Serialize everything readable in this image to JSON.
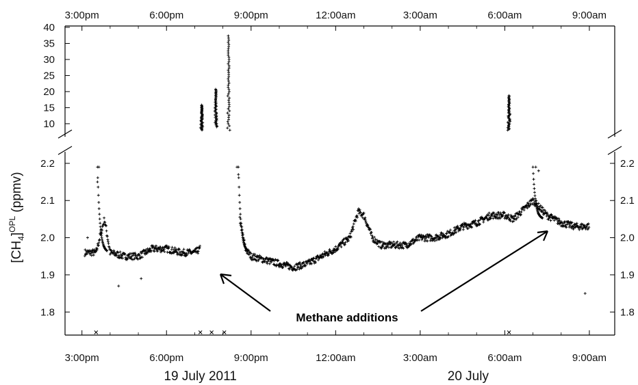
{
  "chart_data": {
    "type": "scatter",
    "title": "",
    "ylabel_main": "[CH",
    "ylabel_sub": "4",
    "ylabel_sup": "OPL",
    "ylabel_unit": " (ppmv)",
    "x_ticks": [
      "3:00pm",
      "6:00pm",
      "9:00pm",
      "12:00am",
      "3:00am",
      "6:00am",
      "9:00am"
    ],
    "x_tick_hours": [
      15,
      18,
      21,
      24,
      27,
      30,
      33
    ],
    "xlim": [
      14.4,
      33.9
    ],
    "date_labels": [
      {
        "text": "19 July 2011",
        "at_hour": 19.2
      },
      {
        "text": "20 July",
        "at_hour": 28.7
      }
    ],
    "upper_panel": {
      "ylim": [
        7,
        40
      ],
      "ticks": [
        "40",
        "35",
        "30",
        "25",
        "20",
        "15",
        "10"
      ],
      "tick_values": [
        40,
        35,
        30,
        25,
        20,
        15,
        10
      ]
    },
    "lower_panel": {
      "ylim": [
        1.76,
        2.22
      ],
      "ticks": [
        "2.2",
        "2.1",
        "2.0",
        "1.9",
        "1.8"
      ],
      "tick_values": [
        2.2,
        2.1,
        2.0,
        1.9,
        1.8
      ]
    },
    "annotation": "Methane additions",
    "addition_markers_hours": [
      15.5,
      19.2,
      19.6,
      20.05,
      30.15
    ],
    "baseline_series": [
      [
        15.1,
        1.96
      ],
      [
        15.5,
        1.96
      ],
      [
        15.8,
        2.05
      ],
      [
        16.0,
        1.96
      ],
      [
        16.5,
        1.95
      ],
      [
        17.0,
        1.95
      ],
      [
        17.5,
        1.97
      ],
      [
        18.0,
        1.97
      ],
      [
        18.5,
        1.96
      ],
      [
        19.0,
        1.96
      ],
      [
        19.2,
        1.97
      ],
      [
        20.6,
        2.05
      ],
      [
        20.8,
        1.97
      ],
      [
        21.0,
        1.95
      ],
      [
        21.5,
        1.94
      ],
      [
        22.0,
        1.93
      ],
      [
        22.5,
        1.92
      ],
      [
        23.0,
        1.93
      ],
      [
        23.5,
        1.95
      ],
      [
        24.0,
        1.97
      ],
      [
        24.5,
        2.0
      ],
      [
        24.8,
        2.07
      ],
      [
        25.0,
        2.06
      ],
      [
        25.3,
        2.0
      ],
      [
        25.6,
        1.98
      ],
      [
        26.0,
        1.98
      ],
      [
        26.5,
        1.98
      ],
      [
        27.0,
        2.0
      ],
      [
        27.5,
        2.0
      ],
      [
        28.0,
        2.01
      ],
      [
        28.5,
        2.03
      ],
      [
        29.0,
        2.04
      ],
      [
        29.5,
        2.06
      ],
      [
        30.0,
        2.06
      ],
      [
        30.3,
        2.05
      ],
      [
        31.0,
        2.1
      ],
      [
        31.5,
        2.06
      ],
      [
        32.0,
        2.04
      ],
      [
        32.5,
        2.03
      ],
      [
        33.0,
        2.03
      ]
    ],
    "upper_spikes": [
      {
        "hour": 19.25,
        "min": 8,
        "max": 16
      },
      {
        "hour": 19.75,
        "min": 9,
        "max": 21
      },
      {
        "hour": 20.2,
        "min": 8,
        "max": 38
      },
      {
        "hour": 30.15,
        "min": 8,
        "max": 19
      }
    ],
    "outliers": [
      [
        15.2,
        2.0
      ],
      [
        16.3,
        1.87
      ],
      [
        17.1,
        1.89
      ],
      [
        20.5,
        2.19
      ],
      [
        20.55,
        2.17
      ],
      [
        31.1,
        2.19
      ],
      [
        31.2,
        2.18
      ],
      [
        32.85,
        1.85
      ],
      [
        15.6,
        2.19
      ],
      [
        15.55,
        2.15
      ]
    ]
  }
}
